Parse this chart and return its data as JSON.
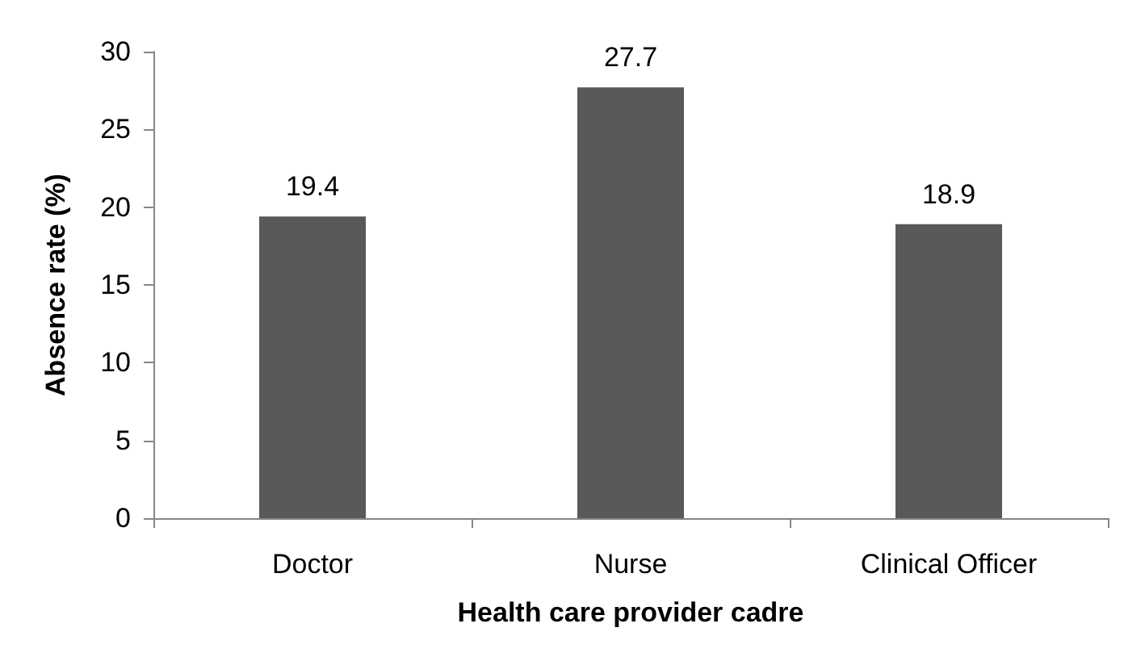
{
  "chart_data": {
    "type": "bar",
    "xlabel": "Health care provider cadre",
    "ylabel": "Absence rate (%)",
    "categories": [
      "Doctor",
      "Nurse",
      "Clinical Officer"
    ],
    "values": [
      19.4,
      27.7,
      18.9
    ],
    "color": "#595959",
    "data_labels": true,
    "ylim": [
      0,
      30
    ],
    "yticks": [
      0,
      5,
      10,
      15,
      20,
      25,
      30
    ],
    "grid": false
  }
}
